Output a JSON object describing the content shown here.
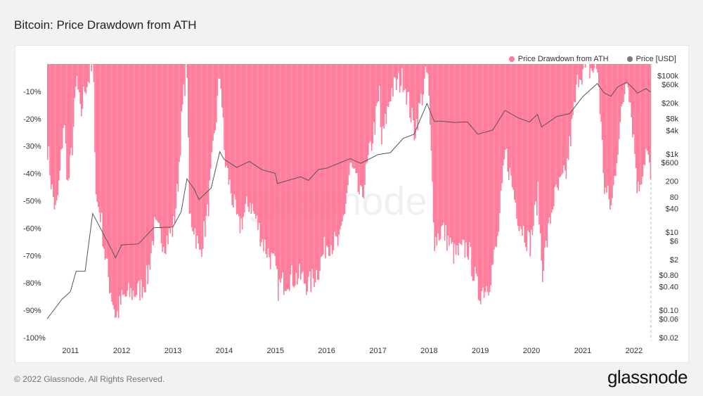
{
  "title": "Bitcoin: Price Drawdown from ATH",
  "footer": "© 2022 Glassnode. All Rights Reserved.",
  "brand": "glassnode",
  "watermark": "glassnode",
  "colors": {
    "drawdown": "#ff7a99",
    "price": "#555555",
    "axis_text": "#333333",
    "background": "#f2f2f2",
    "panel": "#ffffff"
  },
  "legend": [
    {
      "label": "Price Drawdown from ATH",
      "color": "#ff7a99"
    },
    {
      "label": "Price [USD]",
      "color": "#7a7a7a"
    }
  ],
  "chart_data": {
    "type": "area",
    "series": [
      {
        "name": "Price Drawdown from ATH",
        "axis": "left",
        "points": [
          [
            "2010-07-18",
            -30
          ],
          [
            "2010-08-15",
            -45
          ],
          [
            "2010-09-15",
            -55
          ],
          [
            "2010-10-15",
            -40
          ],
          [
            "2010-11-10",
            -20
          ],
          [
            "2010-12-10",
            -45
          ],
          [
            "2011-01-10",
            -30
          ],
          [
            "2011-02-10",
            -5
          ],
          [
            "2011-03-10",
            -20
          ],
          [
            "2011-04-10",
            -8
          ],
          [
            "2011-05-10",
            -5
          ],
          [
            "2011-06-08",
            -2
          ],
          [
            "2011-06-30",
            -50
          ],
          [
            "2011-07-31",
            -55
          ],
          [
            "2011-08-31",
            -70
          ],
          [
            "2011-09-30",
            -80
          ],
          [
            "2011-10-31",
            -88
          ],
          [
            "2011-11-18",
            -93
          ],
          [
            "2011-12-31",
            -86
          ],
          [
            "2012-02-29",
            -84
          ],
          [
            "2012-04-30",
            -83
          ],
          [
            "2012-06-30",
            -78
          ],
          [
            "2012-08-17",
            -60
          ],
          [
            "2012-10-31",
            -65
          ],
          [
            "2012-12-31",
            -60
          ],
          [
            "2013-01-31",
            -45
          ],
          [
            "2013-02-28",
            -20
          ],
          [
            "2013-03-31",
            -2
          ],
          [
            "2013-04-10",
            -2
          ],
          [
            "2013-04-20",
            -55
          ],
          [
            "2013-05-31",
            -60
          ],
          [
            "2013-07-05",
            -70
          ],
          [
            "2013-08-31",
            -55
          ],
          [
            "2013-10-31",
            -20
          ],
          [
            "2013-11-30",
            -2
          ],
          [
            "2013-12-31",
            -35
          ],
          [
            "2014-02-28",
            -50
          ],
          [
            "2014-04-10",
            -60
          ],
          [
            "2014-06-30",
            -50
          ],
          [
            "2014-09-30",
            -65
          ],
          [
            "2014-12-31",
            -75
          ],
          [
            "2015-01-14",
            -82
          ],
          [
            "2015-03-31",
            -78
          ],
          [
            "2015-06-30",
            -78
          ],
          [
            "2015-08-25",
            -81
          ],
          [
            "2015-10-31",
            -75
          ],
          [
            "2015-12-31",
            -65
          ],
          [
            "2016-03-31",
            -66
          ],
          [
            "2016-06-17",
            -37
          ],
          [
            "2016-08-31",
            -50
          ],
          [
            "2016-12-31",
            -15
          ],
          [
            "2017-01-05",
            -5
          ],
          [
            "2017-01-20",
            -30
          ],
          [
            "2017-03-31",
            -10
          ],
          [
            "2017-06-30",
            -5
          ],
          [
            "2017-09-15",
            -25
          ],
          [
            "2017-12-17",
            -2
          ],
          [
            "2018-02-06",
            -65
          ],
          [
            "2018-03-31",
            -60
          ],
          [
            "2018-06-30",
            -70
          ],
          [
            "2018-09-30",
            -67
          ],
          [
            "2018-12-15",
            -84
          ],
          [
            "2019-02-28",
            -80
          ],
          [
            "2019-04-30",
            -65
          ],
          [
            "2019-06-26",
            -32
          ],
          [
            "2019-09-30",
            -57
          ],
          [
            "2019-12-18",
            -66
          ],
          [
            "2020-02-13",
            -48
          ],
          [
            "2020-03-13",
            -76
          ],
          [
            "2020-05-31",
            -50
          ],
          [
            "2020-08-31",
            -40
          ],
          [
            "2020-11-30",
            -3
          ],
          [
            "2021-03-13",
            -2
          ],
          [
            "2021-04-14",
            -2
          ],
          [
            "2021-05-31",
            -45
          ],
          [
            "2021-07-20",
            -53
          ],
          [
            "2021-09-07",
            -28
          ],
          [
            "2021-11-10",
            -2
          ],
          [
            "2021-12-31",
            -30
          ],
          [
            "2022-01-24",
            -47
          ],
          [
            "2022-03-28",
            -31
          ],
          [
            "2022-04-30",
            -44
          ]
        ]
      },
      {
        "name": "Price [USD]",
        "axis": "right",
        "points": [
          [
            "2010-07-18",
            0.06
          ],
          [
            "2010-10-31",
            0.19
          ],
          [
            "2010-12-31",
            0.3
          ],
          [
            "2011-02-10",
            1
          ],
          [
            "2011-04-15",
            1
          ],
          [
            "2011-06-08",
            30
          ],
          [
            "2011-07-31",
            13
          ],
          [
            "2011-09-30",
            5
          ],
          [
            "2011-11-18",
            2.2
          ],
          [
            "2011-12-31",
            4.7
          ],
          [
            "2012-04-30",
            5
          ],
          [
            "2012-08-17",
            13
          ],
          [
            "2012-12-31",
            13.5
          ],
          [
            "2013-02-28",
            33
          ],
          [
            "2013-04-10",
            230
          ],
          [
            "2013-05-31",
            128
          ],
          [
            "2013-07-05",
            68
          ],
          [
            "2013-09-30",
            135
          ],
          [
            "2013-11-30",
            1140
          ],
          [
            "2013-12-31",
            730
          ],
          [
            "2014-03-31",
            450
          ],
          [
            "2014-06-30",
            640
          ],
          [
            "2014-09-30",
            390
          ],
          [
            "2014-12-31",
            320
          ],
          [
            "2015-01-14",
            175
          ],
          [
            "2015-06-30",
            260
          ],
          [
            "2015-08-25",
            210
          ],
          [
            "2015-11-04",
            400
          ],
          [
            "2015-12-31",
            430
          ],
          [
            "2016-06-17",
            760
          ],
          [
            "2016-08-31",
            575
          ],
          [
            "2016-12-31",
            960
          ],
          [
            "2017-03-31",
            1080
          ],
          [
            "2017-06-30",
            2500
          ],
          [
            "2017-09-15",
            3200
          ],
          [
            "2017-12-17",
            19500
          ],
          [
            "2018-02-06",
            6900
          ],
          [
            "2018-03-31",
            6900
          ],
          [
            "2018-06-30",
            6400
          ],
          [
            "2018-09-30",
            6600
          ],
          [
            "2018-12-15",
            3200
          ],
          [
            "2019-03-31",
            4100
          ],
          [
            "2019-06-26",
            13000
          ],
          [
            "2019-09-30",
            8300
          ],
          [
            "2019-12-18",
            6600
          ],
          [
            "2020-02-13",
            10300
          ],
          [
            "2020-03-13",
            4900
          ],
          [
            "2020-06-30",
            9100
          ],
          [
            "2020-09-30",
            10800
          ],
          [
            "2020-12-31",
            29000
          ],
          [
            "2021-04-14",
            63500
          ],
          [
            "2021-05-31",
            37000
          ],
          [
            "2021-07-20",
            29800
          ],
          [
            "2021-09-07",
            52000
          ],
          [
            "2021-11-10",
            68000
          ],
          [
            "2021-12-31",
            46000
          ],
          [
            "2022-01-24",
            36000
          ],
          [
            "2022-03-28",
            47000
          ],
          [
            "2022-04-30",
            38500
          ]
        ]
      }
    ],
    "x_ticks": [
      "2011",
      "2012",
      "2013",
      "2014",
      "2015",
      "2016",
      "2017",
      "2018",
      "2019",
      "2020",
      "2021",
      "2022"
    ],
    "x_range": [
      "2010-07-18",
      "2022-05-02"
    ],
    "y_left": {
      "ticks": [
        "-10%",
        "-20%",
        "-30%",
        "-40%",
        "-50%",
        "-60%",
        "-70%",
        "-80%",
        "-90%",
        "-100%"
      ],
      "range": [
        -100,
        0
      ]
    },
    "y_right": {
      "scale": "log",
      "range": [
        0.02,
        200000
      ],
      "ticks": [
        {
          "label": "$100k",
          "value": 100000
        },
        {
          "label": "$60k",
          "value": 60000
        },
        {
          "label": "$20k",
          "value": 20000
        },
        {
          "label": "$8k",
          "value": 8000
        },
        {
          "label": "$4k",
          "value": 4000
        },
        {
          "label": "$1k",
          "value": 1000
        },
        {
          "label": "$600",
          "value": 600
        },
        {
          "label": "200",
          "value": 200
        },
        {
          "label": "80",
          "value": 80
        },
        {
          "label": "$40",
          "value": 40
        },
        {
          "label": "$10",
          "value": 10
        },
        {
          "label": "$6",
          "value": 6
        },
        {
          "label": "$2",
          "value": 2
        },
        {
          "label": "$0.80",
          "value": 0.8
        },
        {
          "label": "$0.40",
          "value": 0.4
        },
        {
          "label": "$0.10",
          "value": 0.1
        },
        {
          "label": "$0.06",
          "value": 0.06
        },
        {
          "label": "$0.02",
          "value": 0.02
        }
      ]
    },
    "grid": false,
    "legend_position": "top-right"
  }
}
